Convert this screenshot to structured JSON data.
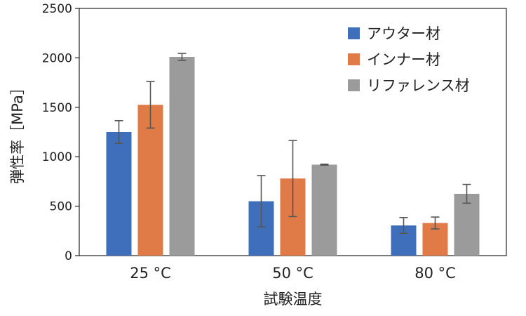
{
  "chart_data": {
    "type": "bar",
    "title": "",
    "xlabel": "試験温度",
    "ylabel": "弾性率［MPa］",
    "categories": [
      "25 °C",
      "50 °C",
      "80 °C"
    ],
    "ylim": [
      0,
      2500
    ],
    "yticks": [
      0,
      500,
      1000,
      1500,
      2000,
      2500
    ],
    "grid": false,
    "legend_position": "top-right",
    "series": [
      {
        "name": "アウター材",
        "color": "#3f6fba",
        "values": [
          1250,
          550,
          305
        ],
        "errors": [
          115,
          260,
          80
        ]
      },
      {
        "name": "インナー材",
        "color": "#e07b47",
        "values": [
          1525,
          780,
          330
        ],
        "errors": [
          235,
          385,
          60
        ]
      },
      {
        "name": "リファレンス材",
        "color": "#9b9b9b",
        "values": [
          2010,
          920,
          625
        ],
        "errors": [
          35,
          5,
          95
        ]
      }
    ]
  }
}
